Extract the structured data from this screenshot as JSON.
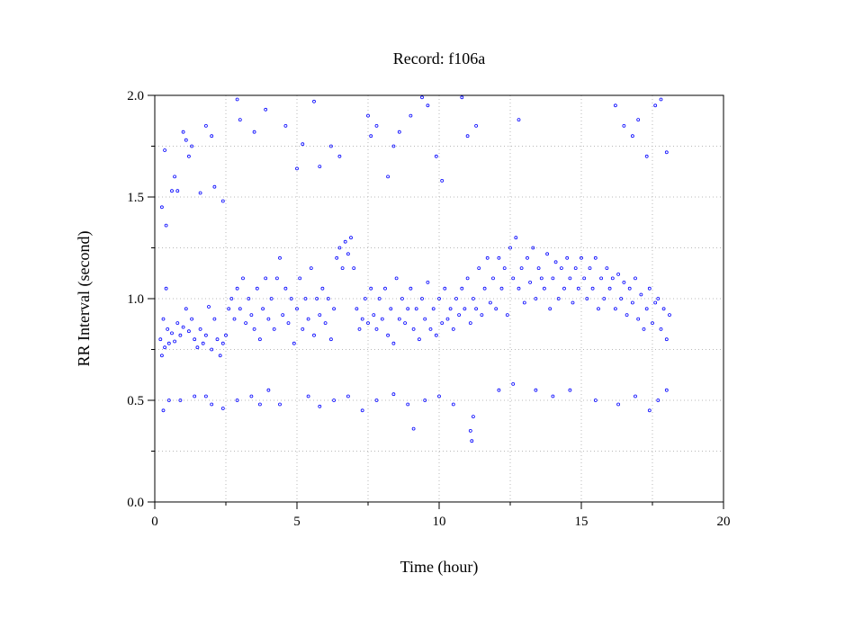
{
  "chart_data": {
    "type": "scatter",
    "title": "Record:  f106a",
    "xlabel": "Time (hour)",
    "ylabel": "RR Interval (second)",
    "xlim": [
      0,
      20
    ],
    "ylim": [
      0.0,
      2.0
    ],
    "x_ticks": [
      0,
      5,
      10,
      15,
      20
    ],
    "x_tick_labels": [
      "0",
      "5",
      "10",
      "15",
      "20"
    ],
    "y_ticks": [
      0.0,
      0.5,
      1.0,
      1.5,
      2.0
    ],
    "y_tick_labels": [
      "0.0",
      "0.5",
      "1.0",
      "1.5",
      "2.0"
    ],
    "grid": true,
    "marker": "hollow-circle",
    "color": "#0000ff",
    "series": [
      {
        "points": [
          [
            0.2,
            0.8
          ],
          [
            0.25,
            0.72
          ],
          [
            0.3,
            0.9
          ],
          [
            0.35,
            0.76
          ],
          [
            0.4,
            1.05
          ],
          [
            0.45,
            0.85
          ],
          [
            0.5,
            0.78
          ],
          [
            0.6,
            0.83
          ],
          [
            0.7,
            0.79
          ],
          [
            0.8,
            0.88
          ],
          [
            0.9,
            0.82
          ],
          [
            1.0,
            0.86
          ],
          [
            1.1,
            0.95
          ],
          [
            1.2,
            0.84
          ],
          [
            1.3,
            0.9
          ],
          [
            1.4,
            0.8
          ],
          [
            1.5,
            0.76
          ],
          [
            1.6,
            0.85
          ],
          [
            1.7,
            0.78
          ],
          [
            1.8,
            0.82
          ],
          [
            1.9,
            0.96
          ],
          [
            2.0,
            0.75
          ],
          [
            2.1,
            0.9
          ],
          [
            2.2,
            0.8
          ],
          [
            2.3,
            0.72
          ],
          [
            2.4,
            0.78
          ],
          [
            2.5,
            0.82
          ],
          [
            2.6,
            0.95
          ],
          [
            2.7,
            1.0
          ],
          [
            2.8,
            0.9
          ],
          [
            2.9,
            1.05
          ],
          [
            3.0,
            0.95
          ],
          [
            3.1,
            1.1
          ],
          [
            3.2,
            0.88
          ],
          [
            3.3,
            1.0
          ],
          [
            3.4,
            0.92
          ],
          [
            3.5,
            0.85
          ],
          [
            3.6,
            1.05
          ],
          [
            3.7,
            0.8
          ],
          [
            3.8,
            0.95
          ],
          [
            3.9,
            1.1
          ],
          [
            4.0,
            0.9
          ],
          [
            4.1,
            1.0
          ],
          [
            4.2,
            0.85
          ],
          [
            4.3,
            1.1
          ],
          [
            4.4,
            1.2
          ],
          [
            4.5,
            0.92
          ],
          [
            4.6,
            1.05
          ],
          [
            4.7,
            0.88
          ],
          [
            4.8,
            1.0
          ],
          [
            4.9,
            0.78
          ],
          [
            5.0,
            0.95
          ],
          [
            5.1,
            1.1
          ],
          [
            5.2,
            0.85
          ],
          [
            5.3,
            1.0
          ],
          [
            5.4,
            0.9
          ],
          [
            5.5,
            1.15
          ],
          [
            5.6,
            0.82
          ],
          [
            5.7,
            1.0
          ],
          [
            5.8,
            0.92
          ],
          [
            5.9,
            1.05
          ],
          [
            6.0,
            0.88
          ],
          [
            6.1,
            1.0
          ],
          [
            6.2,
            0.8
          ],
          [
            6.3,
            0.95
          ],
          [
            6.4,
            1.2
          ],
          [
            6.5,
            1.25
          ],
          [
            6.6,
            1.15
          ],
          [
            6.7,
            1.28
          ],
          [
            6.8,
            1.22
          ],
          [
            6.9,
            1.3
          ],
          [
            7.0,
            1.15
          ],
          [
            7.1,
            0.95
          ],
          [
            7.2,
            0.85
          ],
          [
            7.3,
            0.9
          ],
          [
            7.4,
            1.0
          ],
          [
            7.5,
            0.88
          ],
          [
            7.6,
            1.05
          ],
          [
            7.7,
            0.92
          ],
          [
            7.8,
            0.85
          ],
          [
            7.9,
            1.0
          ],
          [
            8.0,
            0.9
          ],
          [
            8.1,
            1.05
          ],
          [
            8.2,
            0.82
          ],
          [
            8.3,
            0.95
          ],
          [
            8.4,
            0.78
          ],
          [
            8.5,
            1.1
          ],
          [
            8.6,
            0.9
          ],
          [
            8.7,
            1.0
          ],
          [
            8.8,
            0.88
          ],
          [
            8.9,
            0.95
          ],
          [
            9.0,
            1.05
          ],
          [
            9.1,
            0.85
          ],
          [
            9.2,
            0.95
          ],
          [
            9.3,
            0.8
          ],
          [
            9.4,
            1.0
          ],
          [
            9.5,
            0.9
          ],
          [
            9.6,
            1.08
          ],
          [
            9.7,
            0.85
          ],
          [
            9.8,
            0.95
          ],
          [
            9.9,
            0.82
          ],
          [
            10.0,
            1.0
          ],
          [
            10.1,
            0.88
          ],
          [
            10.2,
            1.05
          ],
          [
            10.3,
            0.9
          ],
          [
            10.4,
            0.95
          ],
          [
            10.5,
            0.85
          ],
          [
            10.6,
            1.0
          ],
          [
            10.7,
            0.92
          ],
          [
            10.8,
            1.05
          ],
          [
            10.9,
            0.95
          ],
          [
            11.0,
            1.1
          ],
          [
            11.1,
            0.88
          ],
          [
            11.2,
            1.0
          ],
          [
            11.3,
            0.95
          ],
          [
            11.4,
            1.15
          ],
          [
            11.5,
            0.92
          ],
          [
            11.6,
            1.05
          ],
          [
            11.7,
            1.2
          ],
          [
            11.8,
            0.98
          ],
          [
            11.9,
            1.1
          ],
          [
            12.0,
            0.95
          ],
          [
            12.1,
            1.2
          ],
          [
            12.2,
            1.05
          ],
          [
            12.3,
            1.15
          ],
          [
            12.4,
            0.92
          ],
          [
            12.5,
            1.25
          ],
          [
            12.6,
            1.1
          ],
          [
            12.7,
            1.3
          ],
          [
            12.8,
            1.05
          ],
          [
            12.9,
            1.15
          ],
          [
            13.0,
            0.98
          ],
          [
            13.1,
            1.2
          ],
          [
            13.2,
            1.08
          ],
          [
            13.3,
            1.25
          ],
          [
            13.4,
            1.0
          ],
          [
            13.5,
            1.15
          ],
          [
            13.6,
            1.1
          ],
          [
            13.7,
            1.05
          ],
          [
            13.8,
            1.22
          ],
          [
            13.9,
            0.95
          ],
          [
            14.0,
            1.1
          ],
          [
            14.1,
            1.18
          ],
          [
            14.2,
            1.0
          ],
          [
            14.3,
            1.15
          ],
          [
            14.4,
            1.05
          ],
          [
            14.5,
            1.2
          ],
          [
            14.6,
            1.1
          ],
          [
            14.7,
            0.98
          ],
          [
            14.8,
            1.15
          ],
          [
            14.9,
            1.05
          ],
          [
            15.0,
            1.2
          ],
          [
            15.1,
            1.1
          ],
          [
            15.2,
            1.0
          ],
          [
            15.3,
            1.15
          ],
          [
            15.4,
            1.05
          ],
          [
            15.5,
            1.2
          ],
          [
            15.6,
            0.95
          ],
          [
            15.7,
            1.1
          ],
          [
            15.8,
            1.0
          ],
          [
            15.9,
            1.15
          ],
          [
            16.0,
            1.05
          ],
          [
            16.1,
            1.1
          ],
          [
            16.2,
            0.95
          ],
          [
            16.3,
            1.12
          ],
          [
            16.4,
            1.0
          ],
          [
            16.5,
            1.08
          ],
          [
            16.6,
            0.92
          ],
          [
            16.7,
            1.05
          ],
          [
            16.8,
            0.98
          ],
          [
            16.9,
            1.1
          ],
          [
            17.0,
            0.9
          ],
          [
            17.1,
            1.02
          ],
          [
            17.2,
            0.85
          ],
          [
            17.3,
            0.95
          ],
          [
            17.4,
            1.05
          ],
          [
            17.5,
            0.88
          ],
          [
            17.6,
            0.98
          ],
          [
            17.7,
            1.0
          ],
          [
            17.8,
            0.85
          ],
          [
            17.9,
            0.95
          ],
          [
            18.0,
            0.8
          ],
          [
            18.1,
            0.92
          ],
          [
            0.25,
            1.45
          ],
          [
            0.35,
            1.73
          ],
          [
            0.4,
            1.36
          ],
          [
            0.6,
            1.53
          ],
          [
            0.7,
            1.6
          ],
          [
            0.8,
            1.53
          ],
          [
            1.0,
            1.82
          ],
          [
            1.1,
            1.78
          ],
          [
            1.2,
            1.7
          ],
          [
            1.3,
            1.75
          ],
          [
            1.6,
            1.52
          ],
          [
            1.8,
            1.85
          ],
          [
            2.0,
            1.8
          ],
          [
            2.1,
            1.55
          ],
          [
            2.4,
            1.48
          ],
          [
            2.9,
            1.98
          ],
          [
            3.0,
            1.88
          ],
          [
            3.5,
            1.82
          ],
          [
            3.9,
            1.93
          ],
          [
            4.6,
            1.85
          ],
          [
            5.0,
            1.64
          ],
          [
            5.2,
            1.76
          ],
          [
            5.6,
            1.97
          ],
          [
            5.8,
            1.65
          ],
          [
            6.2,
            1.75
          ],
          [
            6.5,
            1.7
          ],
          [
            7.5,
            1.9
          ],
          [
            7.6,
            1.8
          ],
          [
            7.8,
            1.85
          ],
          [
            8.2,
            1.6
          ],
          [
            8.4,
            1.75
          ],
          [
            8.6,
            1.82
          ],
          [
            9.0,
            1.9
          ],
          [
            9.4,
            1.99
          ],
          [
            9.6,
            1.95
          ],
          [
            9.9,
            1.7
          ],
          [
            10.1,
            1.58
          ],
          [
            10.8,
            1.99
          ],
          [
            11.0,
            1.8
          ],
          [
            11.3,
            1.85
          ],
          [
            12.8,
            1.88
          ],
          [
            16.2,
            1.95
          ],
          [
            16.5,
            1.85
          ],
          [
            16.8,
            1.8
          ],
          [
            17.0,
            1.88
          ],
          [
            17.3,
            1.7
          ],
          [
            17.6,
            1.95
          ],
          [
            17.8,
            1.98
          ],
          [
            18.0,
            1.72
          ],
          [
            0.3,
            0.45
          ],
          [
            0.5,
            0.5
          ],
          [
            0.9,
            0.5
          ],
          [
            1.4,
            0.52
          ],
          [
            1.8,
            0.52
          ],
          [
            2.0,
            0.48
          ],
          [
            2.4,
            0.46
          ],
          [
            2.9,
            0.5
          ],
          [
            3.4,
            0.52
          ],
          [
            3.7,
            0.48
          ],
          [
            4.0,
            0.55
          ],
          [
            4.4,
            0.48
          ],
          [
            5.4,
            0.52
          ],
          [
            5.8,
            0.47
          ],
          [
            6.3,
            0.5
          ],
          [
            6.8,
            0.52
          ],
          [
            7.3,
            0.45
          ],
          [
            7.8,
            0.5
          ],
          [
            8.4,
            0.53
          ],
          [
            8.9,
            0.48
          ],
          [
            9.1,
            0.36
          ],
          [
            9.5,
            0.5
          ],
          [
            10.0,
            0.52
          ],
          [
            10.5,
            0.48
          ],
          [
            11.1,
            0.35
          ],
          [
            11.15,
            0.3
          ],
          [
            11.2,
            0.42
          ],
          [
            12.1,
            0.55
          ],
          [
            12.6,
            0.58
          ],
          [
            13.4,
            0.55
          ],
          [
            14.0,
            0.52
          ],
          [
            14.6,
            0.55
          ],
          [
            15.5,
            0.5
          ],
          [
            16.3,
            0.48
          ],
          [
            16.9,
            0.52
          ],
          [
            17.4,
            0.45
          ],
          [
            17.7,
            0.5
          ],
          [
            18.0,
            0.55
          ]
        ]
      }
    ]
  }
}
